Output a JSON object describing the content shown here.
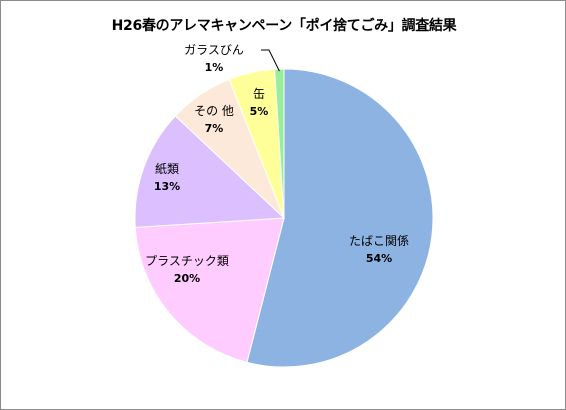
{
  "chart_data": {
    "type": "pie",
    "title": "H26春のアレマキャンペーン「ポイ捨てごみ」調査結果",
    "slices": [
      {
        "label": "たばこ関係",
        "value": 54,
        "value_label": "54%",
        "color": "#8db3e2"
      },
      {
        "label": "プラスチック類",
        "value": 20,
        "value_label": "20%",
        "color": "#ffccff"
      },
      {
        "label": "紙類",
        "value": 13,
        "value_label": "13%",
        "color": "#dbbfff"
      },
      {
        "label": "その 他",
        "value": 7,
        "value_label": "7%",
        "color": "#fde9d9"
      },
      {
        "label": "缶",
        "value": 5,
        "value_label": "5%",
        "color": "#ffff99"
      },
      {
        "label": "ガラスびん",
        "value": 1,
        "value_label": "1%",
        "color": "#99ee99"
      }
    ],
    "start": "12 o'clock",
    "direction": "clockwise",
    "legend": "none",
    "data_labels": "inside slices; small slice 'ガラスびん' labelled outside with leader line"
  }
}
